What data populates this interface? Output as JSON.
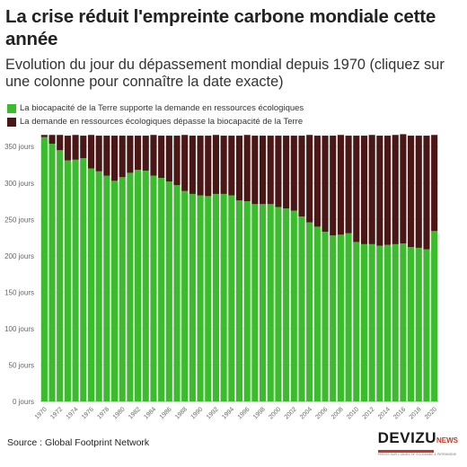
{
  "header": {
    "title": "La crise réduit l'empreinte carbone mondiale cette année",
    "subtitle": "Evolution du jour du dépassement mondial depuis 1970 (cliquez sur une colonne pour connaître la date exacte)"
  },
  "legend": {
    "items": [
      {
        "label": "La biocapacité de la Terre supporte la demande en ressources écologiques",
        "color": "#3dbb2e"
      },
      {
        "label": "La demande en ressources écologiques dépasse la biocapacité de la Terre",
        "color": "#4a1616"
      }
    ]
  },
  "footer": {
    "source": "Source : Global Footprint Network",
    "logo": "DEVIZU",
    "logo_suffix": "NEWS",
    "logo_tagline": "PRÉCIS SUR L'OBJECTIF ÉCONOMIE & PATRIMOINE"
  },
  "chart_data": {
    "type": "bar",
    "stacked": true,
    "x": [
      1970,
      1971,
      1972,
      1973,
      1974,
      1975,
      1976,
      1977,
      1978,
      1979,
      1980,
      1981,
      1982,
      1983,
      1984,
      1985,
      1986,
      1987,
      1988,
      1989,
      1990,
      1991,
      1992,
      1993,
      1994,
      1995,
      1996,
      1997,
      1998,
      1999,
      2000,
      2001,
      2002,
      2003,
      2004,
      2005,
      2006,
      2007,
      2008,
      2009,
      2010,
      2011,
      2012,
      2013,
      2014,
      2015,
      2016,
      2017,
      2018,
      2019,
      2020
    ],
    "x_tick_labels": [
      "1970",
      "1972",
      "1974",
      "1976",
      "1978",
      "1980",
      "1982",
      "1984",
      "1986",
      "1988",
      "1990",
      "1992",
      "1994",
      "1996",
      "1998",
      "2000",
      "2002",
      "2004",
      "2006",
      "2008",
      "2010",
      "2012",
      "2014",
      "2016",
      "2018",
      "2020"
    ],
    "series": [
      {
        "name": "La biocapacité de la Terre supporte la demande en ressources écologiques",
        "color": "#3dbb2e",
        "values": [
          363,
          354,
          345,
          331,
          332,
          334,
          320,
          316,
          310,
          303,
          308,
          314,
          318,
          317,
          310,
          307,
          302,
          297,
          289,
          285,
          283,
          282,
          285,
          285,
          283,
          276,
          275,
          271,
          271,
          271,
          267,
          265,
          262,
          254,
          246,
          240,
          233,
          228,
          229,
          231,
          219,
          216,
          216,
          214,
          215,
          216,
          217,
          212,
          211,
          209,
          234
        ]
      },
      {
        "name": "La demande en ressources écologiques dépasse la biocapacité de la Terre",
        "color": "#4a1616",
        "values": [
          3,
          12,
          21,
          34,
          34,
          31,
          46,
          49,
          55,
          62,
          57,
          51,
          47,
          48,
          56,
          58,
          63,
          68,
          77,
          80,
          82,
          83,
          81,
          80,
          82,
          89,
          91,
          94,
          94,
          94,
          98,
          100,
          103,
          111,
          120,
          125,
          132,
          137,
          137,
          134,
          146,
          149,
          150,
          151,
          150,
          150,
          150,
          153,
          154,
          156,
          132
        ]
      }
    ],
    "y_ticks": [
      "0 jours",
      "50 jours",
      "100 jours",
      "150 jours",
      "200 jours",
      "250 jours",
      "300 jours",
      "350 jours"
    ],
    "ylim": [
      0,
      370
    ],
    "grid": true,
    "legend_position": "top-left"
  }
}
